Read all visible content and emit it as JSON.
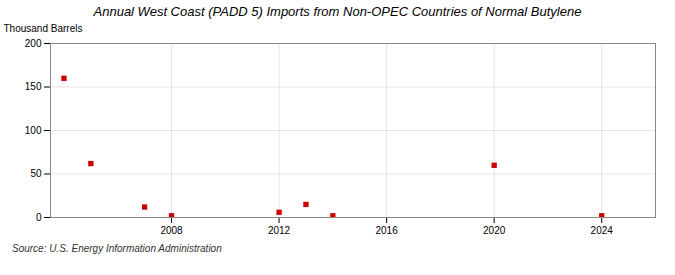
{
  "chart_data": {
    "type": "scatter",
    "title": "Annual West Coast (PADD 5) Imports from Non-OPEC Countries of Normal Butylene",
    "ylabel": "Thousand Barrels",
    "source": "Source: U.S. Energy Information Administration",
    "x": [
      2004,
      2005,
      2007,
      2008,
      2012,
      2013,
      2014,
      2020,
      2024
    ],
    "values": [
      160,
      62,
      12,
      2,
      6,
      15,
      2,
      60,
      2
    ],
    "color": "#cc0000",
    "marker": "square",
    "xlim": [
      2003.5,
      2026
    ],
    "ylim": [
      0,
      200
    ],
    "xticks": [
      2008,
      2012,
      2016,
      2020,
      2024
    ],
    "yticks": [
      0,
      50,
      100,
      150,
      200
    ],
    "grid": true
  }
}
